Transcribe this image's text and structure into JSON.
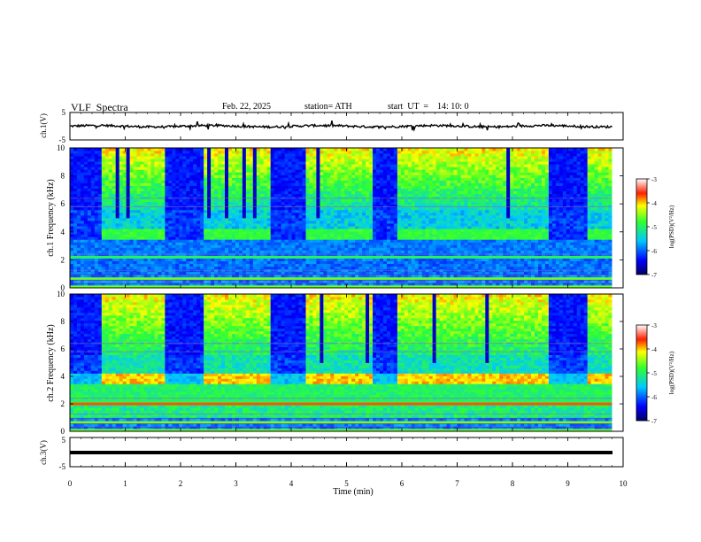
{
  "header": {
    "title": "VLF  Spectra",
    "date": "Feb. 22, 2025",
    "station": "station= ATH",
    "start_ut": "start  UT  =    14: 10: 0"
  },
  "chart_data": [
    {
      "type": "line",
      "panel": "ch1-waveform",
      "ylabel": "ch.1(V)",
      "ylim": [
        -5,
        5
      ],
      "yticks": [
        "5",
        "-5"
      ],
      "xlim": [
        0,
        10
      ],
      "description_values": {
        "mean": 0,
        "amplitude_approx": 0.8
      }
    },
    {
      "type": "heatmap",
      "panel": "ch1-spectrogram",
      "ylabel": "ch.1 Frequency (kHz)",
      "ylim": [
        0,
        10
      ],
      "yticks": [
        "0",
        "2",
        "4",
        "6",
        "8",
        "10"
      ],
      "xlim": [
        0,
        10
      ],
      "colorbar": {
        "label": "log(PSD)(V²/Hz)",
        "range": [
          -7,
          -3
        ],
        "ticks": [
          "-3",
          "-4",
          "-5",
          "-6",
          "-7"
        ]
      },
      "quiet_intervals_min": [
        [
          0,
          0.55
        ],
        [
          1.75,
          2.4
        ],
        [
          3.6,
          4.25
        ],
        [
          5.5,
          5.95
        ],
        [
          8.65,
          9.35
        ]
      ]
    },
    {
      "type": "heatmap",
      "panel": "ch2-spectrogram",
      "ylabel": "ch.2 Frequency (kHz)",
      "ylim": [
        0,
        10
      ],
      "yticks": [
        "0",
        "2",
        "4",
        "6",
        "8",
        "10"
      ],
      "xlim": [
        0,
        10
      ],
      "colorbar": {
        "label": "log(PSD)(V²/Hz)",
        "range": [
          -7,
          -3
        ],
        "ticks": [
          "-3",
          "-4",
          "-5",
          "-6",
          "-7"
        ]
      },
      "quiet_intervals_min": [
        [
          0,
          0.55
        ],
        [
          1.75,
          2.4
        ],
        [
          3.6,
          4.25
        ],
        [
          5.5,
          5.95
        ],
        [
          8.65,
          9.35
        ]
      ]
    },
    {
      "type": "line",
      "panel": "ch3-waveform",
      "ylabel": "ch.3(V)",
      "ylim": [
        -5,
        5
      ],
      "yticks": [
        "5",
        "-5"
      ],
      "xlim": [
        0,
        10
      ],
      "description_values": {
        "mean": -1,
        "amplitude_approx": 0
      }
    }
  ],
  "xaxis": {
    "label": "Time  (min)",
    "ticks": [
      "0",
      "1",
      "2",
      "3",
      "4",
      "5",
      "6",
      "7",
      "8",
      "9",
      "10"
    ]
  },
  "colors": {
    "low": "#0000a0",
    "mid": "#00c8ff",
    "green": "#40ff40",
    "high": "#ff0000"
  }
}
